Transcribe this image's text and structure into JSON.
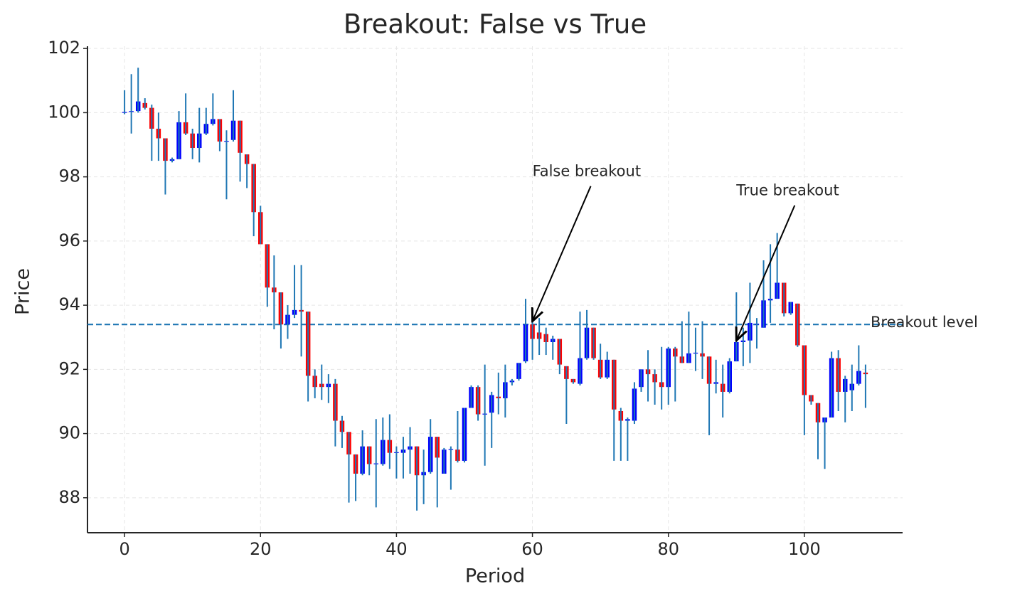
{
  "chart_data": {
    "type": "candlestick",
    "title": "Breakout: False vs True",
    "x_label": "Period",
    "y_label": "Price",
    "x": [
      0,
      1,
      2,
      3,
      4,
      5,
      6,
      7,
      8,
      9,
      10,
      11,
      12,
      13,
      14,
      15,
      16,
      17,
      18,
      19,
      20,
      21,
      22,
      23,
      24,
      25,
      26,
      27,
      28,
      29,
      30,
      31,
      32,
      33,
      34,
      35,
      36,
      37,
      38,
      39,
      40,
      41,
      42,
      43,
      44,
      45,
      46,
      47,
      48,
      49,
      50,
      51,
      52,
      53,
      54,
      55,
      56,
      57,
      58,
      59,
      60,
      61,
      62,
      63,
      64,
      65,
      66,
      67,
      68,
      69,
      70,
      71,
      72,
      73,
      74,
      75,
      76,
      77,
      78,
      79,
      80,
      81,
      82,
      83,
      84,
      85,
      86,
      87,
      88,
      89,
      90,
      91,
      92,
      93,
      94,
      95,
      96,
      97,
      98,
      99,
      100,
      101,
      102,
      103,
      104,
      105,
      106,
      107,
      108,
      109
    ],
    "open": [
      100.0,
      100.03,
      100.05,
      100.3,
      100.15,
      99.5,
      99.2,
      98.5,
      98.55,
      99.7,
      99.35,
      98.9,
      99.35,
      99.65,
      99.8,
      99.1,
      99.15,
      99.75,
      98.7,
      98.4,
      96.9,
      95.9,
      94.55,
      94.4,
      93.4,
      93.7,
      93.85,
      93.8,
      91.8,
      91.55,
      91.45,
      91.55,
      90.4,
      90.05,
      89.35,
      88.75,
      89.6,
      89.05,
      89.05,
      89.8,
      89.4,
      89.4,
      89.5,
      89.6,
      88.7,
      88.8,
      89.9,
      88.75,
      89.5,
      89.5,
      89.15,
      90.8,
      91.45,
      90.6,
      90.65,
      91.15,
      91.1,
      91.6,
      91.7,
      92.25,
      93.4,
      93.15,
      93.1,
      92.85,
      92.95,
      92.1,
      91.7,
      91.55,
      92.35,
      93.3,
      92.3,
      91.75,
      92.3,
      90.7,
      90.4,
      90.4,
      91.45,
      92.0,
      91.85,
      91.6,
      91.45,
      92.65,
      92.4,
      92.2,
      92.5,
      92.5,
      92.4,
      91.55,
      91.55,
      91.3,
      92.25,
      92.85,
      92.9,
      93.4,
      93.3,
      94.15,
      94.2,
      94.7,
      93.75,
      94.05,
      92.75,
      91.2,
      90.95,
      90.35,
      90.5,
      92.35,
      91.3,
      91.35,
      91.55,
      91.9
    ],
    "high": [
      100.7,
      101.2,
      101.4,
      100.45,
      100.25,
      100.0,
      99.2,
      98.6,
      100.05,
      100.6,
      99.5,
      100.15,
      100.15,
      100.6,
      99.8,
      99.45,
      100.7,
      99.75,
      98.7,
      98.4,
      97.1,
      95.9,
      95.55,
      94.4,
      94.0,
      95.25,
      95.25,
      93.8,
      92.0,
      92.15,
      91.85,
      91.7,
      90.55,
      90.05,
      89.35,
      90.1,
      89.6,
      90.45,
      90.5,
      90.6,
      89.6,
      89.9,
      90.2,
      89.6,
      89.5,
      90.45,
      89.9,
      89.55,
      89.6,
      90.7,
      90.8,
      91.5,
      91.5,
      92.15,
      91.3,
      91.9,
      92.15,
      91.7,
      92.2,
      94.2,
      93.5,
      93.6,
      93.3,
      93.05,
      92.95,
      92.1,
      91.7,
      93.8,
      93.85,
      93.3,
      92.8,
      92.55,
      92.3,
      90.8,
      90.5,
      91.6,
      92.0,
      92.6,
      92.0,
      92.7,
      92.7,
      92.7,
      93.5,
      93.8,
      93.3,
      93.5,
      92.4,
      92.3,
      92.15,
      92.35,
      94.4,
      93.3,
      94.7,
      93.6,
      95.4,
      95.9,
      96.25,
      94.7,
      94.1,
      94.05,
      92.75,
      91.2,
      90.95,
      90.5,
      92.55,
      92.6,
      91.8,
      92.15,
      92.75,
      92.15
    ],
    "low": [
      99.95,
      99.35,
      100.0,
      100.1,
      98.5,
      98.5,
      97.45,
      98.45,
      98.55,
      99.3,
      98.55,
      98.45,
      99.3,
      99.6,
      98.8,
      97.3,
      99.1,
      97.85,
      97.65,
      96.15,
      95.9,
      93.95,
      93.25,
      92.65,
      92.95,
      93.6,
      92.4,
      91.0,
      91.1,
      91.05,
      90.95,
      89.6,
      89.55,
      87.85,
      87.9,
      88.7,
      88.7,
      87.7,
      89.0,
      88.9,
      88.6,
      88.6,
      88.75,
      87.6,
      87.8,
      88.75,
      87.7,
      88.75,
      88.25,
      89.1,
      89.1,
      90.8,
      90.4,
      89.0,
      89.55,
      90.6,
      90.5,
      91.5,
      91.65,
      92.2,
      92.3,
      92.45,
      92.45,
      92.3,
      91.85,
      90.3,
      91.55,
      91.5,
      92.3,
      92.3,
      91.7,
      91.7,
      89.15,
      89.15,
      89.15,
      90.3,
      91.3,
      91.0,
      90.9,
      90.75,
      90.9,
      91.0,
      92.2,
      92.2,
      91.95,
      91.7,
      89.95,
      91.25,
      90.5,
      91.25,
      92.25,
      92.1,
      92.2,
      92.65,
      93.3,
      93.45,
      94.2,
      93.65,
      93.7,
      92.7,
      89.95,
      90.9,
      89.2,
      88.9,
      90.5,
      90.7,
      90.35,
      90.7,
      91.5,
      90.8
    ],
    "close": [
      100.02,
      100.05,
      100.35,
      100.15,
      99.5,
      99.2,
      98.5,
      98.55,
      99.7,
      99.35,
      98.9,
      99.35,
      99.65,
      99.8,
      99.1,
      99.12,
      99.75,
      98.75,
      98.4,
      96.9,
      95.9,
      94.55,
      94.4,
      93.4,
      93.7,
      93.85,
      93.8,
      91.8,
      91.45,
      91.45,
      91.55,
      90.4,
      90.05,
      89.35,
      88.75,
      89.6,
      89.05,
      89.07,
      89.8,
      89.4,
      89.42,
      89.5,
      89.6,
      88.7,
      88.8,
      89.9,
      89.25,
      89.5,
      89.52,
      89.15,
      90.8,
      91.45,
      90.6,
      90.62,
      91.2,
      91.1,
      91.6,
      91.65,
      92.2,
      93.4,
      92.95,
      92.95,
      92.85,
      92.95,
      92.15,
      91.7,
      91.6,
      92.35,
      93.3,
      92.35,
      91.75,
      92.3,
      90.75,
      90.4,
      90.45,
      91.4,
      92.0,
      91.85,
      91.6,
      91.45,
      92.65,
      92.4,
      92.2,
      92.5,
      92.52,
      92.4,
      91.55,
      91.6,
      91.3,
      92.25,
      92.85,
      92.9,
      93.45,
      93.42,
      94.15,
      94.2,
      94.7,
      93.75,
      94.1,
      92.75,
      91.2,
      91.0,
      90.35,
      90.5,
      92.35,
      91.3,
      91.7,
      91.55,
      91.95,
      91.85
    ],
    "up_color": "#0000ff",
    "down_color": "#ff0000",
    "wick_color": "#1f77b4",
    "xlim": [
      -5.45,
      114.45
    ],
    "ylim": [
      86.91,
      102.07
    ],
    "xticks": [
      0,
      20,
      40,
      60,
      80,
      100
    ],
    "yticks": [
      88,
      90,
      92,
      94,
      96,
      98,
      100,
      102
    ],
    "grid": true,
    "hlines": [
      {
        "y": 93.4,
        "label": "Breakout level",
        "color": "#1f77b4",
        "style": "dashed"
      }
    ],
    "annotations": [
      {
        "text": "False breakout",
        "x": 60,
        "y": 93.5
      },
      {
        "text": "True breakout",
        "x": 90,
        "y": 92.9
      }
    ]
  }
}
